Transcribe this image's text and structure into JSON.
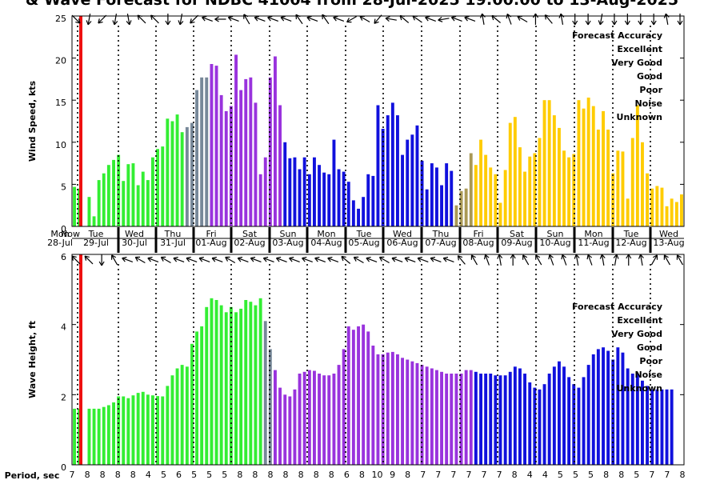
{
  "title": "& Wave Forecast for NDBC 41004 from 28-Jul-2025 19:00:00 to 13-Aug-2025",
  "footer_label": "Period, sec",
  "colors": {
    "Excellent": "#33ee33",
    "Very Good": "#9933dd",
    "Good": "#1111dd",
    "Poor": "#ffcc00",
    "Noise": "#ee1111",
    "Unknown": "#000000",
    "transition_1": "#778899",
    "transition_2": "#aa9955",
    "now_line": "#ee1111"
  },
  "legend": {
    "title": "Forecast Accuracy",
    "items": [
      {
        "label": "Excellent",
        "key": "Excellent"
      },
      {
        "label": "Very Good",
        "key": "Very Good"
      },
      {
        "label": "Good",
        "key": "Good"
      },
      {
        "label": "Poor",
        "key": "Poor"
      },
      {
        "label": "Noise",
        "key": "Noise"
      },
      {
        "label": "Unknown",
        "key": "Unknown"
      }
    ]
  },
  "chart_data": [
    {
      "type": "bar",
      "ylabel": "Wind Speed, kts",
      "ylim": [
        0,
        25
      ],
      "yticks": [
        0,
        5,
        10,
        15,
        20,
        25
      ],
      "day_labels": [
        {
          "day": "Mon",
          "date": "28-Jul"
        },
        {
          "day": "Tue",
          "date": "29-Jul"
        },
        {
          "day": "Wed",
          "date": "30-Jul"
        },
        {
          "day": "Thu",
          "date": "31-Jul"
        },
        {
          "day": "Fri",
          "date": "01-Aug"
        },
        {
          "day": "Sat",
          "date": "02-Aug"
        },
        {
          "day": "Sun",
          "date": "03-Aug"
        },
        {
          "day": "Mon",
          "date": "04-Aug"
        },
        {
          "day": "Tue",
          "date": "05-Aug"
        },
        {
          "day": "Wed",
          "date": "06-Aug"
        },
        {
          "day": "Thu",
          "date": "07-Aug"
        },
        {
          "day": "Fri",
          "date": "08-Aug"
        },
        {
          "day": "Sat",
          "date": "09-Aug"
        },
        {
          "day": "Sun",
          "date": "10-Aug"
        },
        {
          "day": "Mon",
          "date": "11-Aug"
        },
        {
          "day": "Tue",
          "date": "12-Aug"
        },
        {
          "day": "Wed",
          "date": "13-Aug"
        }
      ],
      "now_label": "Now",
      "values": [
        4.7,
        4.5,
        0,
        3.5,
        1.2,
        5.5,
        6.3,
        7.3,
        7.9,
        8.5,
        5.4,
        7.4,
        7.5,
        4.9,
        6.5,
        5.5,
        8.2,
        9.2,
        9.5,
        12.8,
        12.5,
        13.3,
        11.2,
        11.8,
        12.3,
        16.2,
        17.7,
        17.7,
        19.3,
        19.1,
        15.6,
        13.7,
        14.3,
        20.4,
        16.2,
        17.5,
        17.7,
        14.7,
        6.2,
        8.2,
        17.7,
        20.2,
        14.4,
        10.0,
        8.1,
        8.2,
        6.8,
        8.2,
        6.2,
        8.2,
        7.3,
        6.4,
        6.2,
        10.3,
        6.8,
        6.5,
        5.3,
        3.1,
        2.1,
        3.5,
        6.2,
        6.0,
        14.4,
        11.6,
        13.2,
        14.7,
        13.2,
        8.5,
        10.3,
        10.9,
        12.0,
        7.8,
        4.4,
        7.5,
        7.0,
        4.9,
        7.5,
        6.6,
        2.5,
        4.2,
        4.5,
        8.7,
        7.3,
        10.3,
        8.5,
        7.0,
        6.2,
        2.8,
        6.7,
        12.3,
        13.0,
        9.4,
        6.5,
        8.3,
        8.7,
        10.5,
        15.0,
        15.0,
        13.2,
        11.7,
        9.0,
        8.2,
        8.6,
        15.0,
        14.0,
        15.3,
        14.3,
        11.5,
        13.7,
        11.5,
        6.3,
        9.0,
        8.9,
        3.3,
        10.5,
        14.4,
        10.0,
        6.3,
        4.5,
        4.8,
        4.6,
        2.4,
        3.3,
        2.9,
        3.8
      ],
      "arrows": [
        45,
        100,
        135,
        100,
        80,
        225,
        225,
        90,
        100,
        135,
        200,
        180,
        200,
        240,
        200,
        200,
        200,
        235,
        200,
        235,
        200,
        150,
        210,
        130,
        190,
        220,
        215,
        200,
        170,
        200,
        200,
        260,
        220,
        250,
        210,
        270,
        230,
        260,
        90,
        90,
        100,
        90,
        90,
        90,
        90,
        260,
        90
      ]
    },
    {
      "type": "bar",
      "ylabel": "Wave Height, ft",
      "ylim": [
        0,
        6
      ],
      "yticks": [
        0,
        2,
        4,
        6
      ],
      "values": [
        1.6,
        1.6,
        0,
        1.6,
        1.6,
        1.6,
        1.65,
        1.7,
        1.78,
        1.95,
        1.95,
        1.9,
        1.98,
        2.05,
        2.08,
        2.0,
        1.98,
        1.96,
        1.95,
        2.25,
        2.55,
        2.75,
        2.85,
        2.8,
        3.45,
        3.8,
        3.95,
        4.5,
        4.75,
        4.7,
        4.55,
        4.35,
        4.5,
        4.35,
        4.45,
        4.7,
        4.65,
        4.55,
        4.75,
        4.1,
        3.3,
        2.7,
        2.2,
        2.0,
        1.95,
        2.15,
        2.6,
        2.65,
        2.7,
        2.68,
        2.6,
        2.55,
        2.55,
        2.6,
        2.85,
        3.3,
        3.95,
        3.85,
        3.95,
        4.0,
        3.8,
        3.4,
        3.15,
        3.15,
        3.2,
        3.22,
        3.15,
        3.05,
        3.0,
        2.95,
        2.9,
        2.85,
        2.8,
        2.75,
        2.7,
        2.65,
        2.6,
        2.6,
        2.6,
        2.6,
        2.7,
        2.7,
        2.65,
        2.6,
        2.6,
        2.6,
        2.55,
        2.55,
        2.55,
        2.65,
        2.8,
        2.75,
        2.6,
        2.35,
        2.2,
        2.15,
        2.3,
        2.6,
        2.8,
        2.95,
        2.8,
        2.5,
        2.3,
        2.2,
        2.5,
        2.85,
        3.15,
        3.3,
        3.35,
        3.25,
        3.0,
        3.35,
        3.2,
        2.75,
        2.6,
        2.6,
        2.4,
        2.25,
        2.15,
        2.15,
        2.15,
        2.15,
        2.15
      ],
      "arrows": [
        225,
        225,
        90,
        240,
        200,
        210,
        200,
        210,
        200,
        200,
        200,
        200,
        210,
        200,
        200,
        200,
        200,
        200,
        200,
        200,
        200,
        220,
        210,
        200,
        210,
        200,
        200,
        200,
        200,
        200,
        230,
        240,
        250,
        260,
        270,
        240,
        240,
        250,
        250,
        260,
        250,
        260,
        280,
        270,
        260,
        300,
        240,
        240
      ]
    }
  ],
  "periods": [
    "7",
    "8",
    "8",
    "8",
    "8",
    "4",
    "5",
    "6",
    "5",
    "5",
    "5",
    "8",
    "8",
    "8",
    "8",
    "8",
    "8",
    "8",
    "6",
    "8",
    "10",
    "9",
    "8",
    "7",
    "7",
    "7",
    "7",
    "7",
    "7",
    "8",
    "4",
    "4",
    "5",
    "5",
    "5",
    "8",
    "8",
    "5",
    "7",
    "7",
    "8"
  ]
}
